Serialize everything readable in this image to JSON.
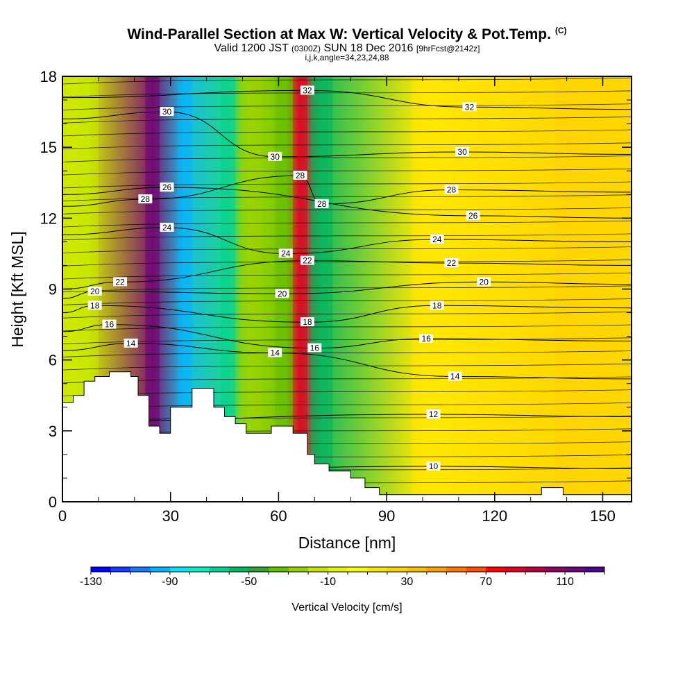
{
  "title": {
    "main": "Wind-Parallel Section at Max W: Vertical Velocity & Pot.Temp.",
    "copyright": "(C)",
    "valid_prefix": "Valid 1200 JST",
    "valid_utc": "(0300Z)",
    "valid_date": "SUN 18 Dec 2016",
    "forecast": "[9hrFcst@2142z]",
    "indices": "i,j,k,angle=34,23,24,88"
  },
  "chart_data": {
    "type": "heatmap",
    "xlabel": "Distance [nm]",
    "ylabel": "Height [Kft MSL]",
    "xlim": [
      0,
      158
    ],
    "ylim": [
      0,
      18
    ],
    "x_ticks": [
      0,
      30,
      60,
      90,
      120,
      150
    ],
    "y_ticks": [
      0,
      3,
      6,
      9,
      12,
      15,
      18
    ],
    "fill_variable": "Vertical Velocity [cm/s]",
    "contour_variable": "Potential temperature",
    "colorbar": {
      "label": "Vertical Velocity [cm/s]",
      "tick_labels": [
        "-130",
        "-90",
        "-50",
        "-10",
        "30",
        "70",
        "110"
      ],
      "tick_values": [
        -130,
        -90,
        -50,
        -10,
        30,
        70,
        110
      ],
      "range": [
        -130,
        130
      ],
      "step": 10,
      "colors": [
        "#0000ff",
        "#0f3cff",
        "#1e78ff",
        "#00b4ff",
        "#00e6ff",
        "#00f0c8",
        "#00d296",
        "#00b464",
        "#32a032",
        "#64be00",
        "#96d200",
        "#c8e600",
        "#e6f500",
        "#ffff00",
        "#ffe600",
        "#ffd200",
        "#ffbe00",
        "#ffa000",
        "#ff7800",
        "#ff5000",
        "#ff0000",
        "#dc0028",
        "#b40046",
        "#8c0064",
        "#6e0078",
        "#500090"
      ]
    },
    "vertical_velocity_bands": [
      {
        "x": 7,
        "value": -20
      },
      {
        "x": 25,
        "value": 115
      },
      {
        "x": 34,
        "value": -100
      },
      {
        "x": 46,
        "value": -70
      },
      {
        "x": 52,
        "value": -30
      },
      {
        "x": 62,
        "value": -40
      },
      {
        "x": 66,
        "value": 80
      },
      {
        "x": 72,
        "value": -60
      },
      {
        "x": 100,
        "value": 10
      },
      {
        "x": 140,
        "value": 20
      }
    ],
    "theta_contour_labels": [
      {
        "text": "10",
        "x": 103,
        "y": 1.5
      },
      {
        "text": "12",
        "x": 103,
        "y": 3.7
      },
      {
        "text": "14",
        "x": 19,
        "y": 6.7
      },
      {
        "text": "14",
        "x": 59,
        "y": 6.3
      },
      {
        "text": "14",
        "x": 109,
        "y": 5.3
      },
      {
        "text": "16",
        "x": 13,
        "y": 7.5
      },
      {
        "text": "16",
        "x": 70,
        "y": 6.5
      },
      {
        "text": "16",
        "x": 101,
        "y": 6.9
      },
      {
        "text": "18",
        "x": 9,
        "y": 8.3
      },
      {
        "text": "18",
        "x": 68,
        "y": 7.6
      },
      {
        "text": "18",
        "x": 104,
        "y": 8.3
      },
      {
        "text": "20",
        "x": 9,
        "y": 8.9
      },
      {
        "text": "20",
        "x": 61,
        "y": 8.8
      },
      {
        "text": "20",
        "x": 117,
        "y": 9.3
      },
      {
        "text": "22",
        "x": 16,
        "y": 9.3
      },
      {
        "text": "22",
        "x": 68,
        "y": 10.2
      },
      {
        "text": "22",
        "x": 108,
        "y": 10.1
      },
      {
        "text": "24",
        "x": 29,
        "y": 11.6
      },
      {
        "text": "24",
        "x": 62,
        "y": 10.5
      },
      {
        "text": "24",
        "x": 104,
        "y": 11.1
      },
      {
        "text": "26",
        "x": 29,
        "y": 13.3
      },
      {
        "text": "26",
        "x": 114,
        "y": 12.1
      },
      {
        "text": "28",
        "x": 23,
        "y": 12.8
      },
      {
        "text": "28",
        "x": 66,
        "y": 13.8
      },
      {
        "text": "28",
        "x": 72,
        "y": 12.6
      },
      {
        "text": "28",
        "x": 108,
        "y": 13.2
      },
      {
        "text": "30",
        "x": 29,
        "y": 16.5
      },
      {
        "text": "30",
        "x": 59,
        "y": 14.6
      },
      {
        "text": "30",
        "x": 111,
        "y": 14.8
      },
      {
        "text": "32",
        "x": 68,
        "y": 17.4
      },
      {
        "text": "32",
        "x": 113,
        "y": 16.7
      }
    ],
    "terrain": [
      [
        0,
        4.2
      ],
      [
        3,
        4.2
      ],
      [
        3,
        4.5
      ],
      [
        6,
        4.5
      ],
      [
        6,
        5.1
      ],
      [
        9,
        5.1
      ],
      [
        9,
        5.3
      ],
      [
        13,
        5.3
      ],
      [
        13,
        5.5
      ],
      [
        19,
        5.5
      ],
      [
        19,
        5.3
      ],
      [
        21,
        5.3
      ],
      [
        21,
        4.5
      ],
      [
        24,
        4.5
      ],
      [
        24,
        3.2
      ],
      [
        27,
        3.2
      ],
      [
        27,
        2.9
      ],
      [
        30,
        2.9
      ],
      [
        30,
        4.0
      ],
      [
        36,
        4.0
      ],
      [
        36,
        4.8
      ],
      [
        42,
        4.8
      ],
      [
        42,
        4.0
      ],
      [
        45,
        4.0
      ],
      [
        45,
        3.6
      ],
      [
        48,
        3.6
      ],
      [
        48,
        3.3
      ],
      [
        51,
        3.3
      ],
      [
        51,
        2.9
      ],
      [
        58,
        2.9
      ],
      [
        58,
        3.2
      ],
      [
        64,
        3.2
      ],
      [
        64,
        2.9
      ],
      [
        68,
        2.9
      ],
      [
        68,
        2.0
      ],
      [
        70,
        2.0
      ],
      [
        70,
        1.6
      ],
      [
        74,
        1.6
      ],
      [
        74,
        1.3
      ],
      [
        80,
        1.3
      ],
      [
        80,
        1.0
      ],
      [
        84,
        1.0
      ],
      [
        84,
        0.6
      ],
      [
        88,
        0.6
      ],
      [
        88,
        0.3
      ],
      [
        133,
        0.3
      ],
      [
        133,
        0.6
      ],
      [
        139,
        0.6
      ],
      [
        139,
        0.3
      ],
      [
        158,
        0.3
      ],
      [
        158,
        0
      ],
      [
        0,
        0
      ]
    ]
  }
}
